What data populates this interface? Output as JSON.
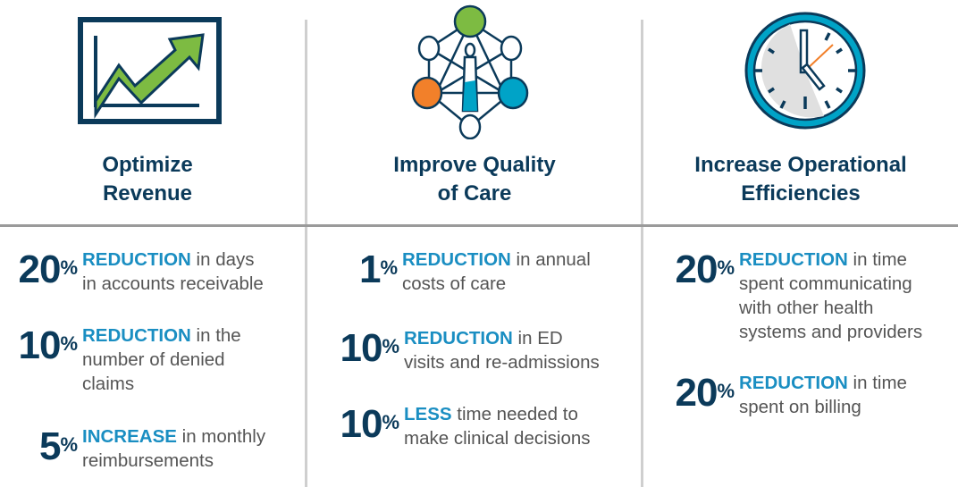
{
  "columns": [
    {
      "icon": "trend-chart-icon",
      "title_line1": "Optimize",
      "title_line2": "Revenue",
      "stats": [
        {
          "value": "20",
          "unit": "%",
          "keyword": "REDUCTION",
          "line1": " in days",
          "line2": "in accounts receivable",
          "line3": ""
        },
        {
          "value": "10",
          "unit": "%",
          "keyword": "REDUCTION",
          "line1": " in the",
          "line2": "number of denied",
          "line3": "claims"
        },
        {
          "value": "5",
          "unit": "%",
          "keyword": "INCREASE",
          "line1": " in monthly",
          "line2": "reimbursements",
          "line3": ""
        }
      ]
    },
    {
      "icon": "care-network-icon",
      "title_line1": "Improve Quality",
      "title_line2": "of Care",
      "stats": [
        {
          "value": "1",
          "unit": "%",
          "keyword": "REDUCTION",
          "line1": " in annual",
          "line2": "costs of care",
          "line3": ""
        },
        {
          "value": "10",
          "unit": "%",
          "keyword": "REDUCTION",
          "line1": " in ED",
          "line2": "visits and re-admissions",
          "line3": ""
        },
        {
          "value": "10",
          "unit": "%",
          "keyword": "LESS",
          "line1": " time needed to",
          "line2": "make clinical decisions",
          "line3": ""
        }
      ]
    },
    {
      "icon": "clock-icon",
      "title_line1": "Increase Operational",
      "title_line2": "Efficiencies",
      "stats": [
        {
          "value": "20",
          "unit": "%",
          "keyword": "REDUCTION",
          "line1": " in time",
          "line2": "spent communicating",
          "line3": "with other health",
          "line4": "systems and providers"
        },
        {
          "value": "20",
          "unit": "%",
          "keyword": "REDUCTION",
          "line1": " in time",
          "line2": "spent on billing",
          "line3": ""
        }
      ]
    }
  ]
}
